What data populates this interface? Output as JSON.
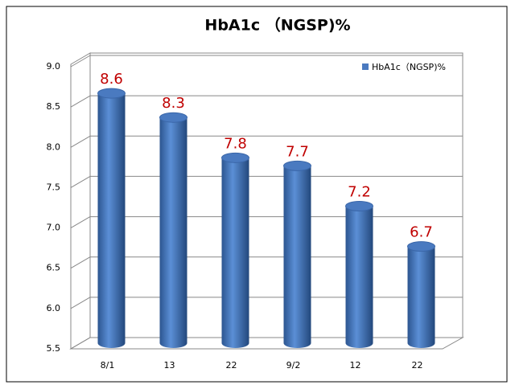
{
  "chart_data": {
    "type": "bar",
    "title": "HbA1c （NGSP)%",
    "categories": [
      "8/1",
      "13",
      "22",
      "9/2",
      "12",
      "22"
    ],
    "series": [
      {
        "name": "HbA1c（NGSP)%",
        "color": "#4a7ac0",
        "values": [
          8.6,
          8.3,
          7.8,
          7.7,
          7.2,
          6.7
        ]
      }
    ],
    "ylim": [
      5.5,
      9.0
    ],
    "yticks": [
      5.5,
      {
        "value": 6,
        "label": "6.0"
      },
      6.5,
      {
        "value": 7,
        "label": "7.0"
      },
      7.5,
      {
        "value": 8,
        "label": "8.0"
      },
      8.5,
      {
        "value": 9,
        "label": "9.0"
      }
    ],
    "grid": true,
    "legend": "top-right",
    "value_label_color": "#c00000"
  }
}
